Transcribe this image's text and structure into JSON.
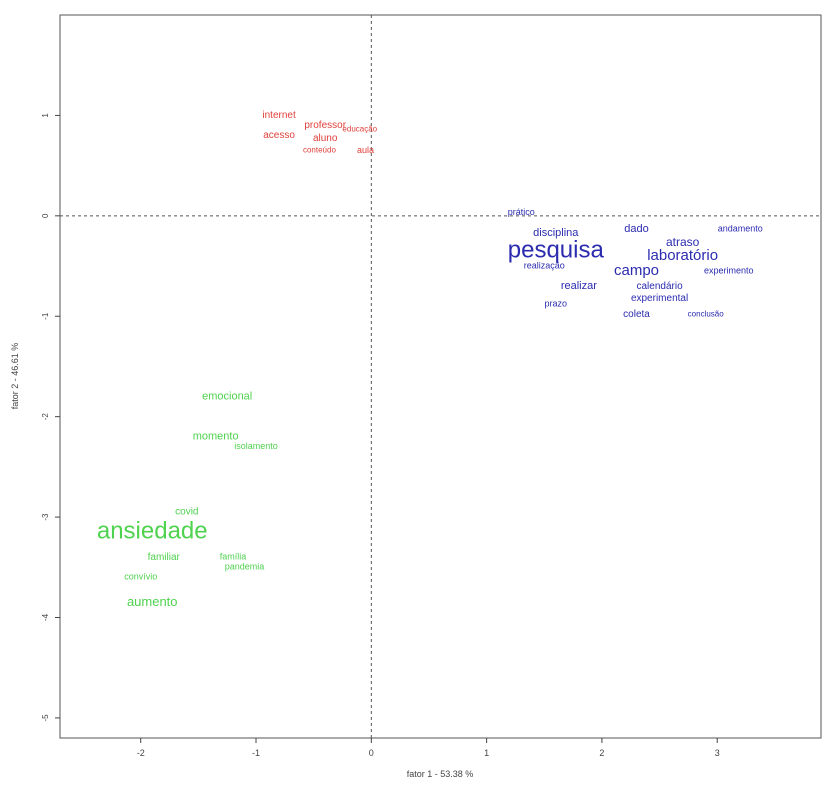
{
  "chart_data": {
    "type": "scatter",
    "title": "",
    "xlabel": "fator 1 - 53.38 %",
    "ylabel": "fator 2 - 46.61 %",
    "xlim": [
      -2.7,
      3.9
    ],
    "ylim": [
      -5.2,
      2.0
    ],
    "xticks": [
      -2,
      -1,
      0,
      1,
      2,
      3
    ],
    "yticks": [
      1,
      0,
      -1,
      -2,
      -3,
      -4,
      -5
    ],
    "grid": false,
    "legend": "none",
    "reference_lines": {
      "x": 0,
      "y": 0
    },
    "colors": {
      "cluster_red": "#e0403a",
      "cluster_blue": "#2b2bb0",
      "cluster_green": "#4fd24f",
      "axis": "#444444"
    },
    "series": [
      {
        "color": "cluster_red",
        "points": [
          {
            "label": "internet",
            "x": -0.8,
            "y": 1.0,
            "size": 10
          },
          {
            "label": "professor",
            "x": -0.4,
            "y": 0.9,
            "size": 10
          },
          {
            "label": "acesso",
            "x": -0.8,
            "y": 0.8,
            "size": 10
          },
          {
            "label": "aluno",
            "x": -0.4,
            "y": 0.77,
            "size": 10
          },
          {
            "label": "educação",
            "x": -0.1,
            "y": 0.86,
            "size": 8
          },
          {
            "label": "aula",
            "x": -0.05,
            "y": 0.65,
            "size": 9
          },
          {
            "label": "conteúdo",
            "x": -0.45,
            "y": 0.65,
            "size": 8
          }
        ]
      },
      {
        "color": "cluster_blue",
        "points": [
          {
            "label": "pesquisa",
            "x": 1.6,
            "y": -0.35,
            "size": 24
          },
          {
            "label": "laboratório",
            "x": 2.7,
            "y": -0.4,
            "size": 15
          },
          {
            "label": "atraso",
            "x": 2.7,
            "y": -0.27,
            "size": 12
          },
          {
            "label": "campo",
            "x": 2.3,
            "y": -0.55,
            "size": 15
          },
          {
            "label": "dado",
            "x": 2.3,
            "y": -0.13,
            "size": 11
          },
          {
            "label": "disciplina",
            "x": 1.6,
            "y": -0.17,
            "size": 11
          },
          {
            "label": "andamento",
            "x": 3.2,
            "y": -0.13,
            "size": 9
          },
          {
            "label": "experimento",
            "x": 3.1,
            "y": -0.55,
            "size": 9
          },
          {
            "label": "realizar",
            "x": 1.8,
            "y": -0.7,
            "size": 11
          },
          {
            "label": "calendário",
            "x": 2.5,
            "y": -0.7,
            "size": 10
          },
          {
            "label": "experimental",
            "x": 2.5,
            "y": -0.82,
            "size": 10
          },
          {
            "label": "realização",
            "x": 1.5,
            "y": -0.5,
            "size": 9
          },
          {
            "label": "coleta",
            "x": 2.3,
            "y": -0.98,
            "size": 10
          },
          {
            "label": "conclusão",
            "x": 2.9,
            "y": -0.98,
            "size": 8
          },
          {
            "label": "prazo",
            "x": 1.6,
            "y": -0.88,
            "size": 9
          },
          {
            "label": "prático",
            "x": 1.3,
            "y": 0.03,
            "size": 9
          }
        ]
      },
      {
        "color": "cluster_green",
        "points": [
          {
            "label": "ansiedade",
            "x": -1.9,
            "y": -3.15,
            "size": 24
          },
          {
            "label": "aumento",
            "x": -1.9,
            "y": -3.85,
            "size": 13
          },
          {
            "label": "emocional",
            "x": -1.25,
            "y": -1.8,
            "size": 11
          },
          {
            "label": "momento",
            "x": -1.35,
            "y": -2.2,
            "size": 11
          },
          {
            "label": "isolamento",
            "x": -1.0,
            "y": -2.3,
            "size": 9
          },
          {
            "label": "familiar",
            "x": -1.8,
            "y": -3.4,
            "size": 10
          },
          {
            "label": "família",
            "x": -1.2,
            "y": -3.4,
            "size": 9
          },
          {
            "label": "covid",
            "x": -1.6,
            "y": -2.95,
            "size": 10
          },
          {
            "label": "pandemia",
            "x": -1.1,
            "y": -3.5,
            "size": 9
          },
          {
            "label": "convívio",
            "x": -2.0,
            "y": -3.6,
            "size": 9
          }
        ]
      }
    ]
  }
}
